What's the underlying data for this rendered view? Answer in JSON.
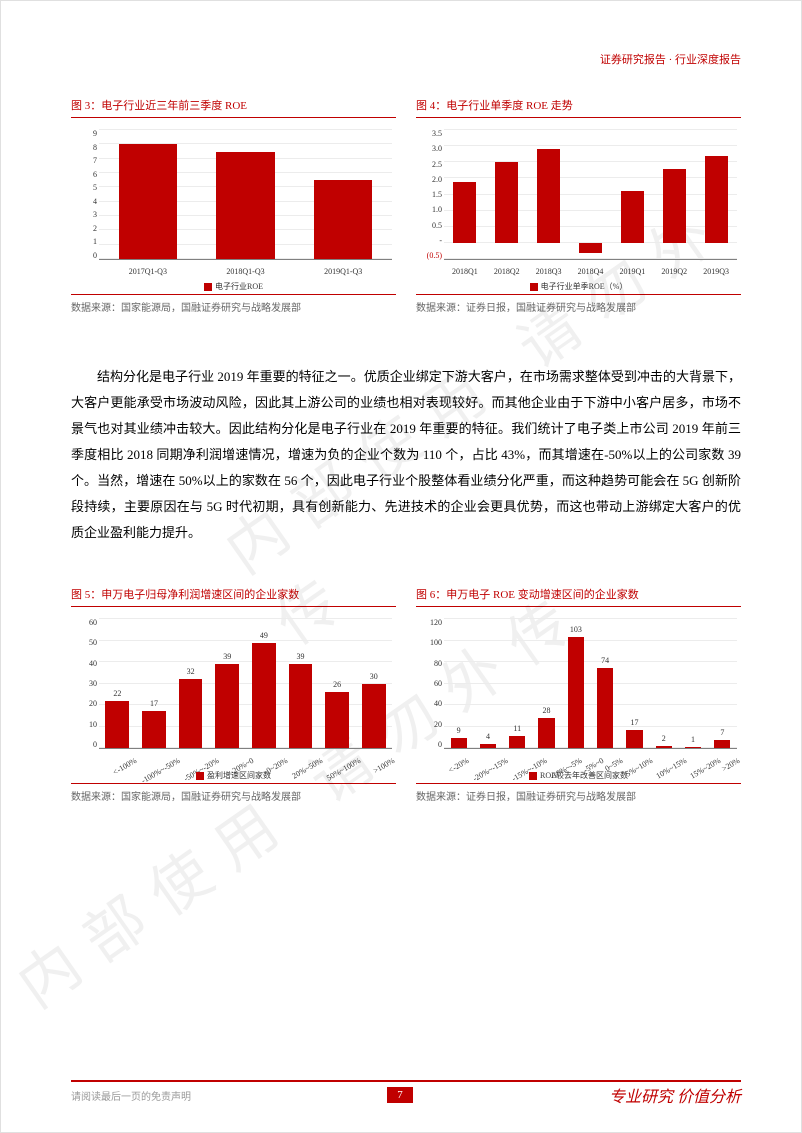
{
  "header": {
    "text": "证券研究报告 · 行业深度报告",
    "color": "#c00000"
  },
  "watermark": {
    "text1": "内部使用 请勿外传",
    "text2": "内部使用 请勿外传"
  },
  "chart3": {
    "title": "图 3：电子行业近三年前三季度 ROE",
    "type": "bar",
    "categories": [
      "2017Q1-Q3",
      "2018Q1-Q3",
      "2019Q1-Q3"
    ],
    "values": [
      8.0,
      7.5,
      5.5
    ],
    "ylim": [
      0,
      9
    ],
    "yticks": [
      0,
      1,
      2,
      3,
      4,
      5,
      6,
      7,
      8,
      9
    ],
    "bar_color": "#c00000",
    "grid_color": "#ececec",
    "legend": "电子行业ROE",
    "source": "数据来源：国家能源局，国融证券研究与战略发展部",
    "label_fontsize": 8
  },
  "chart4": {
    "title": "图 4：电子行业单季度 ROE 走势",
    "type": "bar",
    "categories": [
      "2018Q1",
      "2018Q2",
      "2018Q3",
      "2018Q4",
      "2019Q1",
      "2019Q2",
      "2019Q3"
    ],
    "values": [
      1.9,
      2.5,
      2.9,
      -0.3,
      1.6,
      2.3,
      2.7
    ],
    "ylim": [
      -0.5,
      3.5
    ],
    "yticks": [
      "(0.5)",
      "-",
      "0.5",
      "1.0",
      "1.5",
      "2.0",
      "2.5",
      "3.0",
      "3.5"
    ],
    "ytick_values": [
      -0.5,
      0,
      0.5,
      1.0,
      1.5,
      2.0,
      2.5,
      3.0,
      3.5
    ],
    "bar_color": "#c00000",
    "grid_color": "#ececec",
    "legend": "电子行业单季ROE（%）",
    "source": "数据来源：证券日报，国融证券研究与战略发展部",
    "negative_label_color": "#c00000"
  },
  "body": {
    "p1": "结构分化是电子行业 2019 年重要的特征之一。优质企业绑定下游大客户，在市场需求整体受到冲击的大背景下，大客户更能承受市场波动风险，因此其上游公司的业绩也相对表现较好。而其他企业由于下游中小客户居多，市场不景气也对其业绩冲击较大。因此结构分化是电子行业在 2019 年重要的特征。我们统计了电子类上市公司 2019 年前三季度相比 2018 同期净利润增速情况，增速为负的企业个数为 110 个，占比 43%，而其增速在-50%以上的公司家数 39 个。当然，增速在 50%以上的家数在 56 个，因此电子行业个股整体看业绩分化严重，而这种趋势可能会在 5G 创新阶段持续，主要原因在与 5G 时代初期，具有创新能力、先进技术的企业会更具优势，而这也带动上游绑定大客户的优质企业盈利能力提升。"
  },
  "chart5": {
    "title": "图 5：申万电子归母净利润增速区间的企业家数",
    "type": "bar",
    "categories": [
      "<-100%",
      "-100%~-50%",
      "-50%~-20%",
      "-20%~0",
      "0~20%",
      "20%~50%",
      "50%~100%",
      ">100%"
    ],
    "values": [
      22,
      17,
      32,
      39,
      49,
      39,
      26,
      30
    ],
    "ylim": [
      0,
      60
    ],
    "yticks": [
      0,
      10,
      20,
      30,
      40,
      50,
      60
    ],
    "bar_color": "#c00000",
    "grid_color": "#ececec",
    "legend": "盈利增速区间家数",
    "source": "数据来源：国家能源局，国融证券研究与战略发展部",
    "show_value_labels": true
  },
  "chart6": {
    "title": "图 6：申万电子 ROE 变动增速区间的企业家数",
    "type": "bar",
    "categories": [
      "<-20%",
      "-20%~-15%",
      "-15%~-10%",
      "-10%~-5%",
      "-5%~0",
      "0~5%",
      "5%~10%",
      "10%~15%",
      "15%~20%",
      ">20%"
    ],
    "values": [
      9,
      4,
      11,
      28,
      103,
      74,
      17,
      2,
      1,
      7
    ],
    "ylim": [
      0,
      120
    ],
    "yticks": [
      0,
      20,
      40,
      60,
      80,
      100,
      120
    ],
    "bar_color": "#c00000",
    "grid_color": "#ececec",
    "legend": "ROE较去年改善区间家数",
    "source": "数据来源：证券日报，国融证券研究与战略发展部",
    "show_value_labels": true
  },
  "footer": {
    "disclaimer": "请阅读最后一页的免责声明",
    "page_number": "7",
    "brand": "专业研究 价值分析",
    "accent_color": "#c00000"
  }
}
